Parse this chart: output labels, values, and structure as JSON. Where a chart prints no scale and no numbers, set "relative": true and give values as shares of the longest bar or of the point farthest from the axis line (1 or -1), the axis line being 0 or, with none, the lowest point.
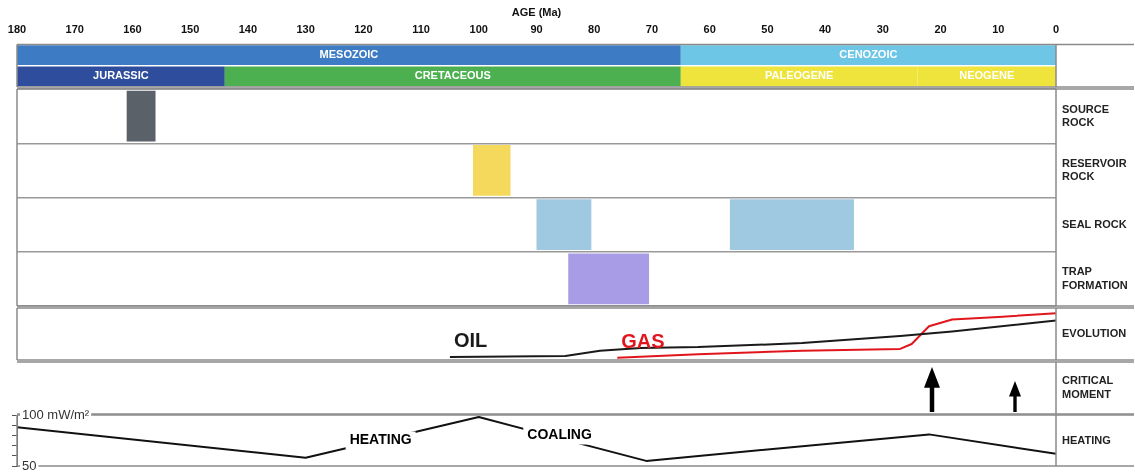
{
  "chart_data": [
    {
      "type": "bar",
      "orientation": "horizontal",
      "stacked": true,
      "xlabel": "AGE (Ma)",
      "xlim": [
        180,
        0
      ],
      "xticks": [
        180,
        170,
        160,
        150,
        140,
        130,
        120,
        110,
        100,
        90,
        80,
        70,
        60,
        50,
        40,
        30,
        20,
        10,
        0
      ],
      "tick_labels": "x",
      "categories": [
        null,
        null
      ],
      "series": [
        {
          "colors": [
            "#6ec6e6",
            "#eee43c"
          ],
          "values": [
            65,
            24
          ],
          "value_labels": [
            "CENOZOIC",
            "NEOGENE"
          ]
        },
        {
          "colors": [
            "#3d7cc4",
            "#eee43c"
          ],
          "values": [
            115,
            41
          ],
          "value_labels": [
            "MESOZOIC",
            "PALEOGENE"
          ]
        },
        {
          "color": "#4cb050",
          "values": [
            null,
            79
          ],
          "value_labels": [
            null,
            "CRETACEOUS"
          ]
        },
        {
          "color": "#2e4d9c",
          "values": [
            null,
            36
          ],
          "value_labels": [
            null,
            "JURASSIC"
          ]
        }
      ]
    },
    {
      "type": "bar",
      "orientation": "horizontal",
      "xlim": [
        180,
        0
      ],
      "tick_labels": "y",
      "grid": "y",
      "categories": [
        "SOURCE ROCK",
        "RESERVOIR ROCK",
        "SEAL ROCK",
        "TRAP FORMATION"
      ],
      "series": [
        {
          "colors": [
            "#5b6169",
            "#f5d95c",
            "#9fc9e1",
            "#a99ce6"
          ],
          "base": [
            156,
            94.5,
            80.5,
            70.5
          ],
          "values": [
            5,
            6.5,
            9.5,
            14
          ]
        },
        {
          "color": "#9fc9e1",
          "base": [
            null,
            null,
            35,
            null
          ],
          "values": [
            null,
            null,
            21.5,
            null
          ]
        }
      ]
    },
    {
      "type": "line",
      "relative": true,
      "xlim": [
        180,
        0
      ],
      "tick_labels": false,
      "ylabel": "EVOLUTION",
      "series": [
        {
          "name": "OIL",
          "color": "#1a1a1a",
          "x": [
            105,
            85,
            79,
            72,
            62,
            44,
            27,
            18,
            0
          ],
          "values": [
            0.02,
            0.04,
            0.16,
            0.22,
            0.24,
            0.33,
            0.49,
            0.59,
            0.84
          ]
        },
        {
          "name": "GAS",
          "color": "#e0161c",
          "x": [
            76,
            62,
            44,
            27,
            25,
            22,
            18,
            10,
            0
          ],
          "values": [
            0,
            0.08,
            0.16,
            0.2,
            0.31,
            0.71,
            0.86,
            0.92,
            1
          ]
        }
      ]
    },
    {
      "type": "other",
      "ylabel": "CRITICAL MOMENT"
    },
    {
      "type": "line",
      "xlim": [
        180,
        0
      ],
      "ylim": [
        50,
        100
      ],
      "yticks": [
        {
          "value": 100,
          "label": "100 mW/m²"
        },
        {
          "value": 90,
          "label": null
        },
        {
          "value": 80,
          "label": null
        },
        {
          "value": 70,
          "label": null
        },
        {
          "value": 60,
          "label": null
        },
        50
      ],
      "tick_labels": "y",
      "ylabel": "HEATING",
      "annotations": [
        {
          "text": "HEATING",
          "x": 117,
          "y": 75
        },
        {
          "text": "COALING",
          "x": 86,
          "y": 80
        }
      ],
      "series": [
        {
          "color": "#111111",
          "x": [
            180,
            130,
            100,
            71,
            22,
            0
          ],
          "values": [
            88,
            58,
            98,
            55,
            81,
            62
          ]
        }
      ]
    }
  ]
}
